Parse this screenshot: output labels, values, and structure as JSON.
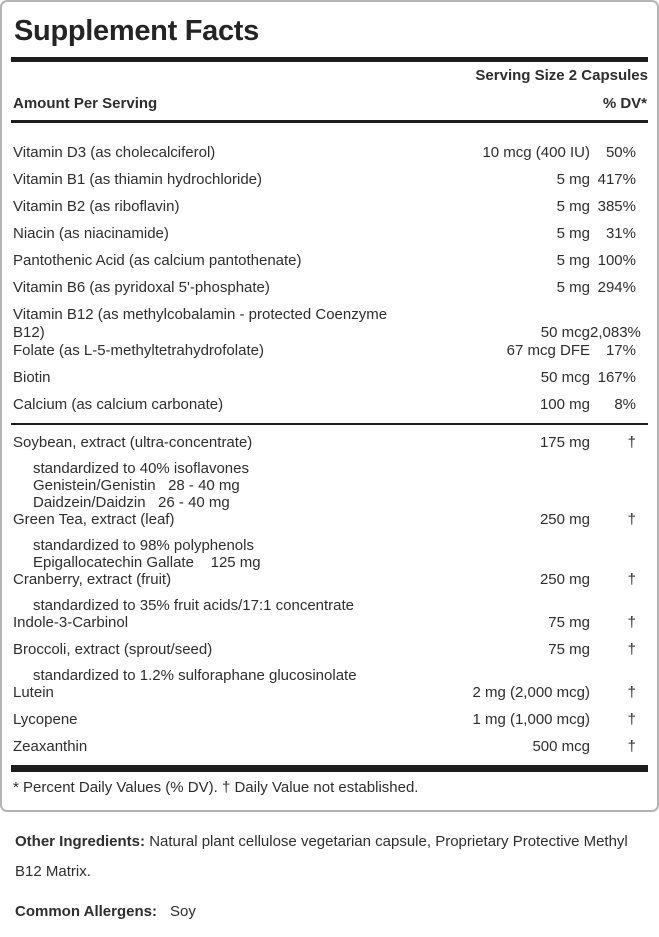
{
  "panel": {
    "title": "Supplement Facts",
    "serving_size": "Serving Size 2 Capsules",
    "amount_header": "Amount Per Serving",
    "dv_header": "% DV*",
    "footnote": "* Percent Daily Values (% DV). † Daily Value not established."
  },
  "nutrients": [
    {
      "name": "Vitamin D3 (as cholecalciferol)",
      "amount": "10 mcg (400 IU)",
      "dv": "50%"
    },
    {
      "name": "Vitamin B1 (as thiamin hydrochloride)",
      "amount": "5 mg",
      "dv": "417%"
    },
    {
      "name": "Vitamin B2 (as riboflavin)",
      "amount": "5 mg",
      "dv": "385%"
    },
    {
      "name": "Niacin (as niacinamide)",
      "amount": "5 mg",
      "dv": "31%"
    },
    {
      "name": "Pantothenic Acid (as calcium pantothenate)",
      "amount": "5 mg",
      "dv": "100%"
    },
    {
      "name": "Vitamin B6 (as pyridoxal 5'-phosphate)",
      "amount": "5 mg",
      "dv": "294%"
    },
    {
      "name": "Vitamin B12 (as methylcobalamin - protected Coenzyme B12)",
      "amount": "50 mcg",
      "dv": "2,083%"
    },
    {
      "name": "Folate (as L-5-methyltetrahydrofolate)",
      "amount": "67 mcg DFE",
      "dv": "17%"
    },
    {
      "name": "Biotin",
      "amount": "50 mcg",
      "dv": "167%"
    },
    {
      "name": "Calcium (as calcium carbonate)",
      "amount": "100 mg",
      "dv": "8%"
    }
  ],
  "botanicals": [
    {
      "name": "Soybean, extract (ultra-concentrate)",
      "amount": "175 mg",
      "dv": "†",
      "sub": [
        "standardized to 40% isoflavones",
        "Genistein/Genistin   28 - 40 mg",
        "Daidzein/Daidzin   26 - 40 mg"
      ]
    },
    {
      "name": "Green Tea, extract (leaf)",
      "amount": "250 mg",
      "dv": "†",
      "sub": [
        "standardized to 98% polyphenols",
        "Epigallocatechin Gallate    125 mg"
      ]
    },
    {
      "name": "Cranberry, extract (fruit)",
      "amount": "250 mg",
      "dv": "†",
      "sub": [
        "standardized to 35% fruit acids/17:1 concentrate"
      ]
    },
    {
      "name": "Indole-3-Carbinol",
      "amount": "75 mg",
      "dv": "†"
    },
    {
      "name": "Broccoli, extract (sprout/seed)",
      "amount": "75 mg",
      "dv": "†",
      "sub": [
        "standardized to 1.2% sulforaphane glucosinolate"
      ]
    },
    {
      "name": "Lutein",
      "amount": "2 mg (2,000 mcg)",
      "dv": "†"
    },
    {
      "name": "Lycopene",
      "amount": "1 mg (1,000 mcg)",
      "dv": "†"
    },
    {
      "name": "Zeaxanthin",
      "amount": "500 mcg",
      "dv": "†"
    }
  ],
  "other_ingredients": {
    "label": "Other Ingredients:",
    "text": "Natural plant cellulose vegetarian capsule, Proprietary Protective Methyl B12 Matrix."
  },
  "allergens": {
    "label": "Common Allergens:",
    "text": "Soy"
  },
  "colors": {
    "text": "#2e2e2e",
    "rule": "#1d1d1d",
    "box_border": "#b4b4b4",
    "background": "#ffffff"
  }
}
